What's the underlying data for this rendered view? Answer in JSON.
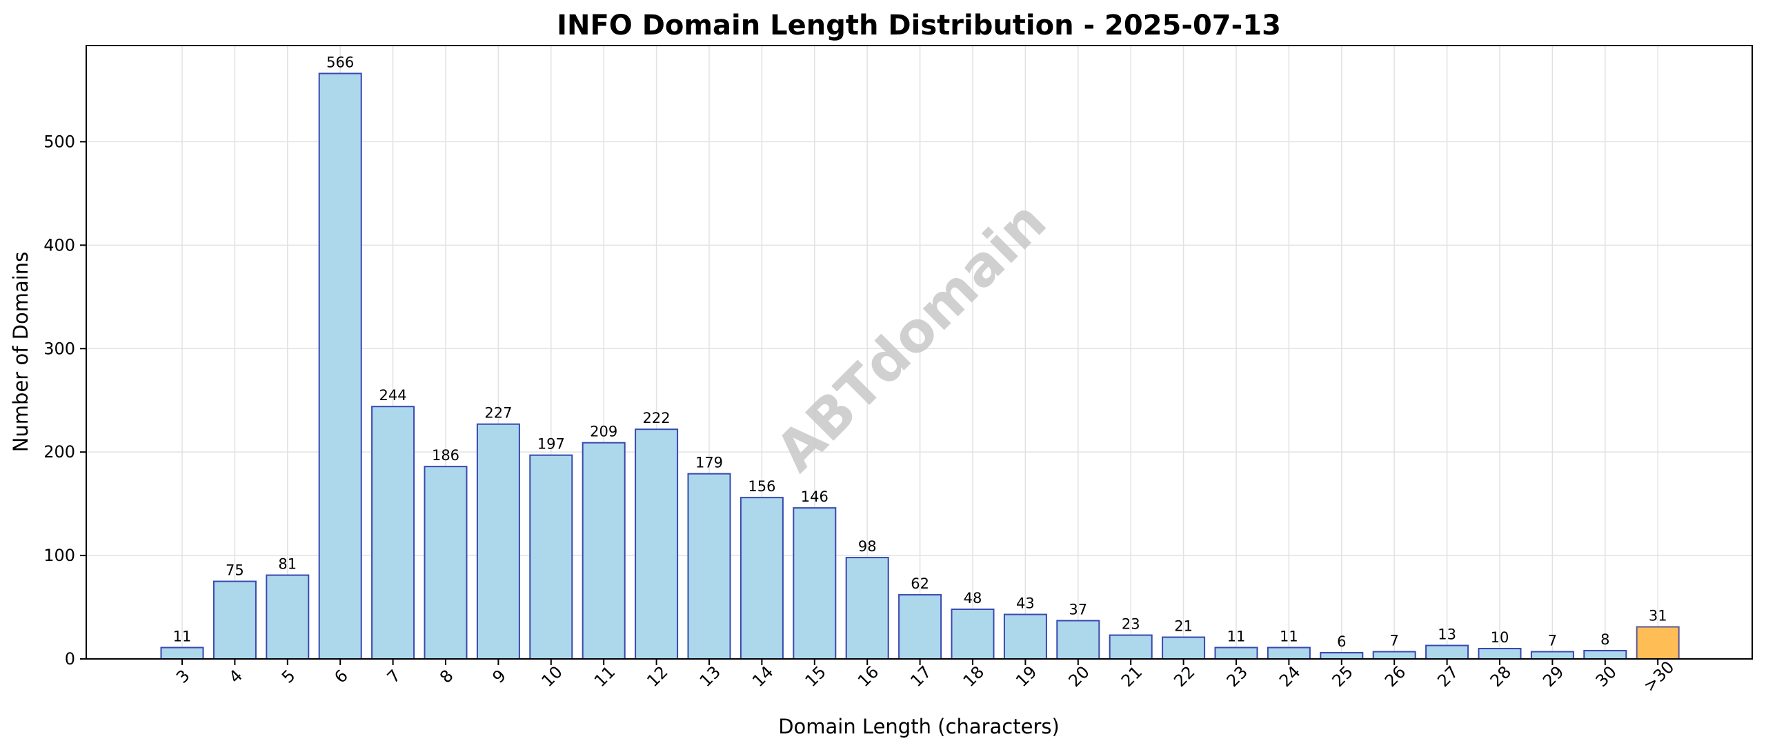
{
  "chart_data": {
    "type": "bar",
    "title": "INFO Domain Length Distribution - 2025-07-13",
    "xlabel": "Domain Length (characters)",
    "ylabel": "Number of Domains",
    "categories": [
      "3",
      "4",
      "5",
      "6",
      "7",
      "8",
      "9",
      "10",
      "11",
      "12",
      "13",
      "14",
      "15",
      "16",
      "17",
      "18",
      "19",
      "20",
      "21",
      "22",
      "23",
      "24",
      "25",
      "26",
      "27",
      "28",
      "29",
      "30",
      ">30"
    ],
    "values": [
      11,
      75,
      81,
      566,
      244,
      186,
      227,
      197,
      209,
      222,
      179,
      156,
      146,
      98,
      62,
      48,
      43,
      37,
      23,
      21,
      11,
      11,
      6,
      7,
      13,
      10,
      7,
      8,
      31
    ],
    "ylim": [
      0,
      593
    ],
    "yticks": [
      0,
      100,
      200,
      300,
      400,
      500
    ],
    "grid": true,
    "colors": {
      "bar_fill": "#add8ec",
      "bar_edge": "#3848b0",
      "highlight_fill": "#ffbe55",
      "highlight_edge": "#5a5a9a",
      "grid": "#e2e2e2"
    },
    "highlight_category": ">30"
  },
  "watermark": "ABTdomain"
}
